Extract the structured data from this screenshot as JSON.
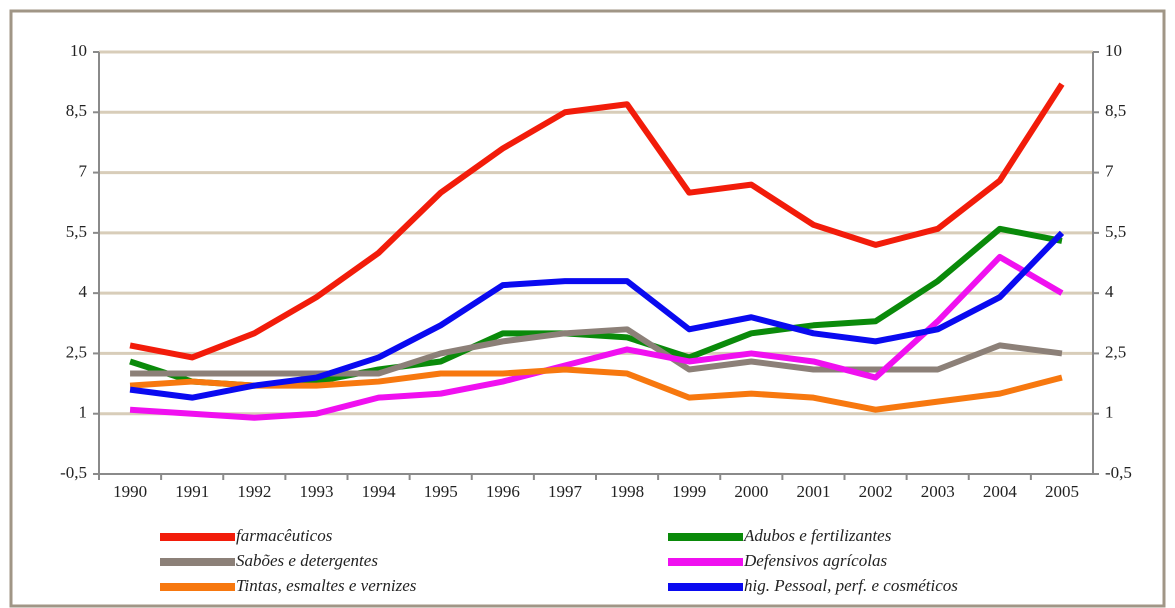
{
  "chart_data": {
    "type": "line",
    "categories": [
      "1990",
      "1991",
      "1992",
      "1993",
      "1994",
      "1995",
      "1996",
      "1997",
      "1998",
      "1999",
      "2000",
      "2001",
      "2002",
      "2003",
      "2004",
      "2005"
    ],
    "series": [
      {
        "name": "farmacêuticos",
        "color": "#f21c0a",
        "values": [
          2.7,
          2.4,
          3.0,
          3.9,
          5.0,
          6.5,
          7.6,
          8.5,
          8.7,
          6.5,
          6.7,
          5.7,
          5.2,
          5.6,
          6.8,
          9.2
        ]
      },
      {
        "name": "Adubos e fertilizantes",
        "color": "#0a8a0a",
        "values": [
          2.3,
          1.8,
          1.7,
          1.8,
          2.1,
          2.3,
          3.0,
          3.0,
          2.9,
          2.4,
          3.0,
          3.2,
          3.3,
          4.3,
          5.6,
          5.3
        ]
      },
      {
        "name": "Sabões e detergentes",
        "color": "#8c8078",
        "values": [
          2.0,
          2.0,
          2.0,
          2.0,
          2.0,
          2.5,
          2.8,
          3.0,
          3.1,
          2.1,
          2.3,
          2.1,
          2.1,
          2.1,
          2.7,
          2.5
        ]
      },
      {
        "name": "Defensivos agrícolas",
        "color": "#f010f0",
        "values": [
          1.1,
          1.0,
          0.9,
          1.0,
          1.4,
          1.5,
          1.8,
          2.2,
          2.6,
          2.3,
          2.5,
          2.3,
          1.9,
          3.3,
          4.9,
          4.0
        ]
      },
      {
        "name": "Tintas, esmaltes e vernizes",
        "color": "#f7780f",
        "values": [
          1.7,
          1.8,
          1.7,
          1.7,
          1.8,
          2.0,
          2.0,
          2.1,
          2.0,
          1.4,
          1.5,
          1.4,
          1.1,
          1.3,
          1.5,
          1.9
        ]
      },
      {
        "name": "hig. Pessoal, perf. e cosméticos",
        "color": "#0a0af0",
        "values": [
          1.6,
          1.4,
          1.7,
          1.9,
          2.4,
          3.2,
          4.2,
          4.3,
          4.3,
          3.1,
          3.4,
          3.0,
          2.8,
          3.1,
          3.9,
          5.5
        ]
      }
    ],
    "ylim": [
      -0.5,
      10
    ],
    "yticks": [
      {
        "value": -0.5,
        "label": "-0,5"
      },
      1,
      {
        "value": 2.5,
        "label": "2,5"
      },
      4,
      {
        "value": 5.5,
        "label": "5,5"
      },
      7,
      {
        "value": 8.5,
        "label": "8,5"
      },
      10
    ],
    "grid": true
  }
}
